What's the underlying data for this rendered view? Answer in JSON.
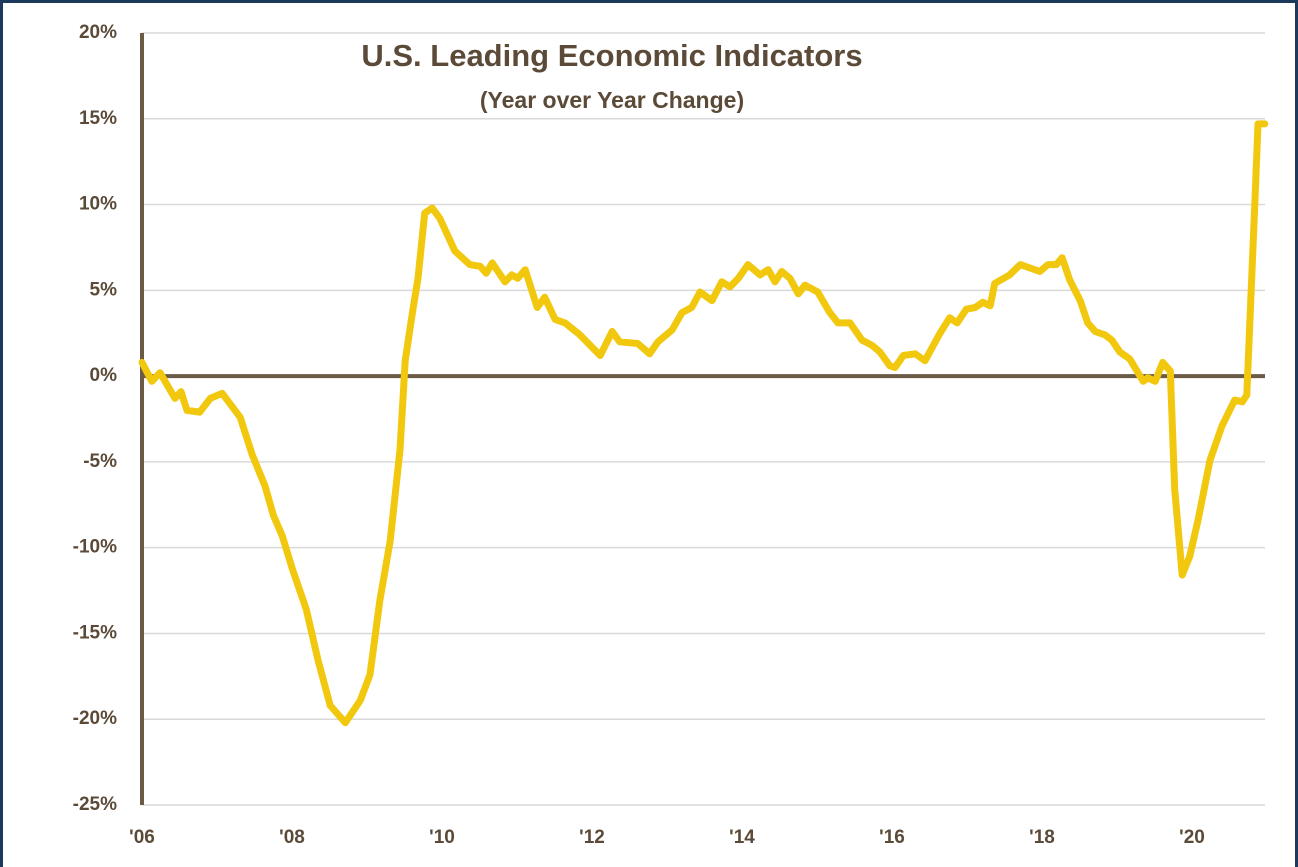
{
  "chart_data": {
    "type": "line",
    "title": "U.S. Leading Economic Indicators",
    "subtitle": "(Year over Year Change)",
    "color": "#f2c80f",
    "grid": true,
    "x": [
      2006.0,
      2006.13,
      2006.24,
      2006.44,
      2006.52,
      2006.6,
      2006.77,
      2006.91,
      2007.07,
      2007.31,
      2007.47,
      2007.64,
      2007.75,
      2007.87,
      2008.01,
      2008.19,
      2008.35,
      2008.51,
      2008.71,
      2008.91,
      2009.04,
      2009.17,
      2009.31,
      2009.44,
      2009.51,
      2009.61,
      2009.68,
      2009.77,
      2009.87,
      2009.97,
      2010.17,
      2010.37,
      2010.51,
      2010.59,
      2010.67,
      2010.84,
      2010.93,
      2011.01,
      2011.11,
      2011.27,
      2011.37,
      2011.51,
      2011.64,
      2011.84,
      2012.11,
      2012.27,
      2012.37,
      2012.61,
      2012.77,
      2012.88,
      2013.07,
      2013.2,
      2013.33,
      2013.44,
      2013.6,
      2013.73,
      2013.84,
      2013.95,
      2014.08,
      2014.24,
      2014.35,
      2014.44,
      2014.53,
      2014.64,
      2014.75,
      2014.84,
      2015.01,
      2015.17,
      2015.28,
      2015.44,
      2015.6,
      2015.73,
      2015.84,
      2015.97,
      2016.04,
      2016.15,
      2016.31,
      2016.44,
      2016.64,
      2016.77,
      2016.87,
      2016.99,
      2017.11,
      2017.21,
      2017.31,
      2017.37,
      2017.57,
      2017.71,
      2017.84,
      2017.97,
      2018.08,
      2018.19,
      2018.27,
      2018.37,
      2018.51,
      2018.61,
      2018.71,
      2018.84,
      2018.93,
      2019.04,
      2019.17,
      2019.35,
      2019.41,
      2019.51,
      2019.61,
      2019.71,
      2019.77,
      2019.87,
      2019.97,
      2020.08,
      2020.24,
      2020.4,
      2020.57,
      2020.67,
      2020.73,
      2020.84,
      2020.88,
      2020.97
    ],
    "values": [
      0.8,
      -0.3,
      0.2,
      -1.3,
      -0.9,
      -2.0,
      -2.1,
      -1.3,
      -1.0,
      -2.4,
      -4.6,
      -6.4,
      -8.1,
      -9.3,
      -11.3,
      -13.6,
      -16.6,
      -19.2,
      -20.2,
      -18.9,
      -17.4,
      -13.1,
      -9.6,
      -4.3,
      0.9,
      3.8,
      5.7,
      9.5,
      9.8,
      9.2,
      7.3,
      6.5,
      6.4,
      6.0,
      6.6,
      5.5,
      5.9,
      5.7,
      6.2,
      4.0,
      4.6,
      3.3,
      3.1,
      2.4,
      1.2,
      2.6,
      2.0,
      1.9,
      1.3,
      2.0,
      2.7,
      3.7,
      4.0,
      4.9,
      4.4,
      5.5,
      5.2,
      5.7,
      6.5,
      5.9,
      6.2,
      5.5,
      6.1,
      5.7,
      4.8,
      5.3,
      4.9,
      3.7,
      3.1,
      3.1,
      2.1,
      1.8,
      1.4,
      0.6,
      0.5,
      1.2,
      1.3,
      0.9,
      2.5,
      3.4,
      3.1,
      3.9,
      4.0,
      4.3,
      4.1,
      5.4,
      5.9,
      6.5,
      6.3,
      6.1,
      6.5,
      6.5,
      6.9,
      5.6,
      4.4,
      3.1,
      2.6,
      2.4,
      2.1,
      1.4,
      1.0,
      -0.3,
      -0.1,
      -0.3,
      0.8,
      0.3,
      -6.6,
      -11.6,
      -10.5,
      -8.4,
      -4.9,
      -2.9,
      -1.4,
      -1.5,
      -1.1,
      10.3,
      14.7,
      14.7
    ],
    "xlim": [
      2006,
      2021
    ],
    "xticks": [
      {
        "value": 2006,
        "label": "'06"
      },
      {
        "value": 2008,
        "label": "'08"
      },
      {
        "value": 2010,
        "label": "'10"
      },
      {
        "value": 2012,
        "label": "'12"
      },
      {
        "value": 2014,
        "label": "'14"
      },
      {
        "value": 2016,
        "label": "'16"
      },
      {
        "value": 2018,
        "label": "'18"
      },
      {
        "value": 2020,
        "label": "'20"
      }
    ],
    "ylim": [
      -25,
      20
    ],
    "yticks": [
      {
        "value": -25,
        "label": "-25%"
      },
      {
        "value": -20,
        "label": "-20%"
      },
      {
        "value": -15,
        "label": "-15%"
      },
      {
        "value": -10,
        "label": "-10%"
      },
      {
        "value": -5,
        "label": "-5%"
      },
      {
        "value": 0,
        "label": "0%"
      },
      {
        "value": 5,
        "label": "5%"
      },
      {
        "value": 10,
        "label": "10%"
      },
      {
        "value": 15,
        "label": "15%"
      },
      {
        "value": 20,
        "label": "20%"
      }
    ]
  }
}
